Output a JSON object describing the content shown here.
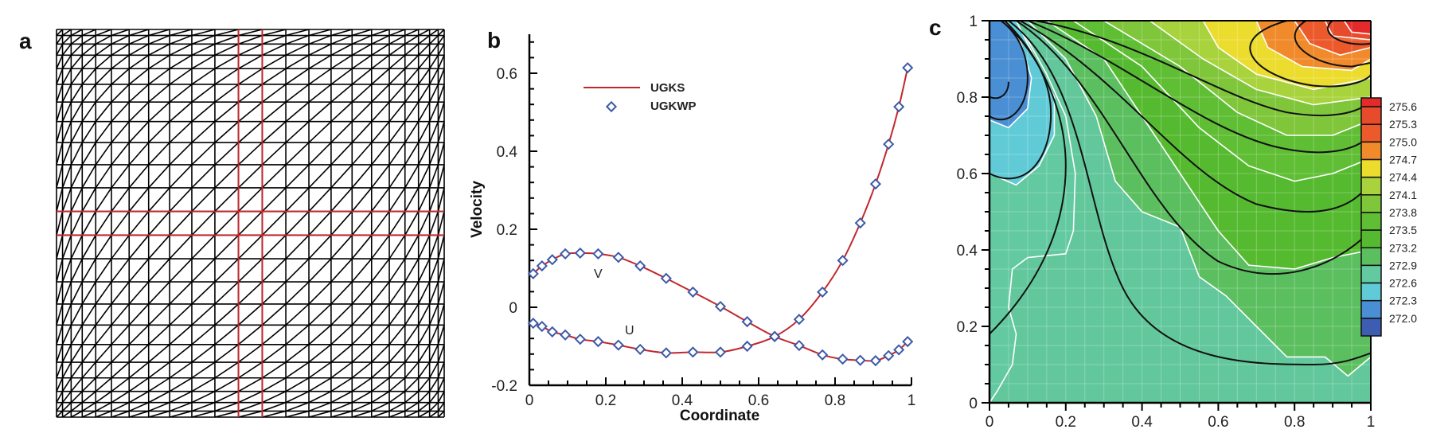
{
  "panels": {
    "a": "a",
    "b": "b",
    "c": "c"
  },
  "chart_data": [
    {
      "panel": "a",
      "type": "mesh",
      "description_label": "a",
      "mesh_color": "#000000",
      "highlight_color": "#c0282d"
    },
    {
      "panel": "b",
      "type": "line",
      "xlabel": "Coordinate",
      "ylabel": "Velocity",
      "xlim": [
        0,
        1
      ],
      "ylim": [
        -0.2,
        0.7
      ],
      "xticks": [
        "0",
        "0.2",
        "0.4",
        "0.6",
        "0.8",
        "1"
      ],
      "xtick_values": [
        0,
        0.2,
        0.4,
        0.6,
        0.8,
        1
      ],
      "yticks": [
        "-0.2",
        "0",
        "0.2",
        "0.4",
        "0.6"
      ],
      "ytick_values": [
        -0.2,
        0,
        0.2,
        0.4,
        0.6
      ],
      "legend": {
        "position": "top-left",
        "line_label": "UGKS",
        "marker_label": "UGKWP"
      },
      "line_color": "#c0282d",
      "marker_color": "#3d5aa8",
      "annotations": [
        {
          "text": "V",
          "x": 0.18,
          "y": 0.075
        },
        {
          "text": "U",
          "x": 0.26,
          "y": -0.06
        }
      ],
      "series": [
        {
          "name": "V",
          "x": [
            0.01,
            0.033,
            0.06,
            0.094,
            0.133,
            0.18,
            0.233,
            0.29,
            0.358,
            0.428,
            0.5,
            0.57,
            0.642,
            0.706,
            0.767,
            0.82,
            0.866,
            0.906,
            0.94,
            0.967,
            0.99
          ],
          "y": [
            0.086,
            0.106,
            0.122,
            0.137,
            0.139,
            0.137,
            0.128,
            0.106,
            0.074,
            0.039,
            0.002,
            -0.037,
            -0.075,
            -0.098,
            -0.122,
            -0.133,
            -0.136,
            -0.137,
            -0.124,
            -0.109,
            -0.088
          ]
        },
        {
          "name": "U",
          "x": [
            0.01,
            0.033,
            0.06,
            0.094,
            0.133,
            0.18,
            0.233,
            0.29,
            0.358,
            0.428,
            0.5,
            0.57,
            0.642,
            0.706,
            0.767,
            0.82,
            0.866,
            0.906,
            0.94,
            0.967,
            0.99
          ],
          "y": [
            -0.041,
            -0.049,
            -0.063,
            -0.071,
            -0.082,
            -0.088,
            -0.097,
            -0.108,
            -0.117,
            -0.115,
            -0.115,
            -0.1,
            -0.075,
            -0.031,
            0.039,
            0.12,
            0.216,
            0.316,
            0.418,
            0.514,
            0.614
          ]
        }
      ]
    },
    {
      "panel": "c",
      "type": "heatmap",
      "subtype": "filled-contour",
      "xlim": [
        0,
        1
      ],
      "ylim": [
        0,
        1
      ],
      "xticks": [
        "0",
        "0.2",
        "0.4",
        "0.6",
        "0.8",
        "1"
      ],
      "xtick_values": [
        0,
        0.2,
        0.4,
        0.6,
        0.8,
        1
      ],
      "yticks": [
        "0",
        "0.2",
        "0.4",
        "0.6",
        "0.8",
        "1"
      ],
      "ytick_values": [
        0,
        0.2,
        0.4,
        0.6,
        0.8,
        1
      ],
      "legend": {
        "position": "right",
        "type": "colorbar"
      },
      "levels": [
        {
          "label": "275.6",
          "value": 275.6,
          "color": "#e84b2c"
        },
        {
          "label": "275.3",
          "value": 275.3,
          "color": "#ec5a2c"
        },
        {
          "label": "275.0",
          "value": 275.0,
          "color": "#f08a2a"
        },
        {
          "label": "274.7",
          "value": 274.7,
          "color": "#ebdc2e"
        },
        {
          "label": "274.4",
          "value": 274.4,
          "color": "#a8d33c"
        },
        {
          "label": "274.1",
          "value": 274.1,
          "color": "#7fc63a"
        },
        {
          "label": "273.8",
          "value": 273.8,
          "color": "#5fbe33"
        },
        {
          "label": "273.5",
          "value": 273.5,
          "color": "#56ba30"
        },
        {
          "label": "273.2",
          "value": 273.2,
          "color": "#5cbf5f"
        },
        {
          "label": "272.9",
          "value": 272.9,
          "color": "#63c9a0"
        },
        {
          "label": "272.6",
          "value": 272.6,
          "color": "#60cbd6"
        },
        {
          "label": "272.3",
          "value": 272.3,
          "color": "#4a8fd3"
        },
        {
          "label": "272.0",
          "value": 272.0,
          "color": "#3d5db0"
        }
      ],
      "top_color": "#e42a2a",
      "bottom_color": "#3a55a6"
    }
  ]
}
